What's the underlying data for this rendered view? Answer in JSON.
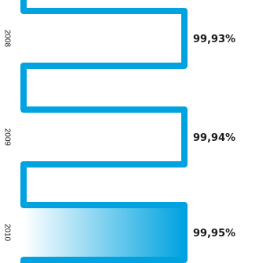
{
  "chart_data": {
    "type": "bar",
    "categories": [
      "2008",
      "2009",
      "2010"
    ],
    "values": [
      "99,93%",
      "99,94%",
      "99,95%"
    ],
    "highlight_category": "2010",
    "colors": {
      "line": "#00a3e0",
      "highlight_start": "#ffffff",
      "highlight_end": "#00a3e0",
      "text": "#1a1a1a"
    }
  }
}
